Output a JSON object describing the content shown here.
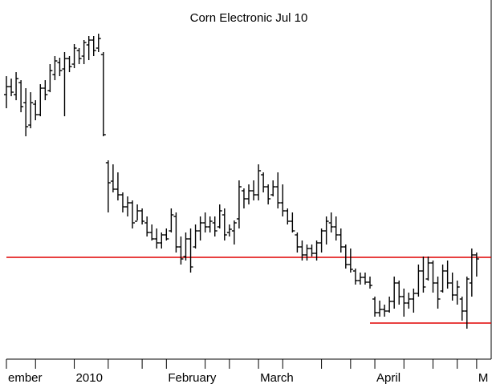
{
  "chart_data": {
    "type": "ohlc",
    "title": "Corn Electronic Jul 10",
    "color": "#000000",
    "xlim": [
      0,
      100
    ],
    "ylim": [
      0,
      448
    ],
    "xticks": [
      {
        "value": 0,
        "label": "ember"
      },
      {
        "value": 6,
        "label": null
      },
      {
        "value": 14,
        "label": "2010"
      },
      {
        "value": 21,
        "label": null
      },
      {
        "value": 28,
        "label": null
      },
      {
        "value": 33,
        "label": "February"
      },
      {
        "value": 41,
        "label": null
      },
      {
        "value": 46,
        "label": null
      },
      {
        "value": 52,
        "label": "March"
      },
      {
        "value": 57,
        "label": null
      },
      {
        "value": 65,
        "label": null
      },
      {
        "value": 71,
        "label": null
      },
      {
        "value": 76,
        "label": "April"
      },
      {
        "value": 82,
        "label": null
      },
      {
        "value": 88,
        "label": null
      },
      {
        "value": 93,
        "label": null
      },
      {
        "value": 97,
        "label": "M"
      }
    ],
    "hlines": [
      {
        "value": 127,
        "color": "#e00000"
      },
      {
        "value": 45,
        "start": 75,
        "color": "#e00000"
      }
    ],
    "open": [
      330,
      340,
      330,
      345,
      320,
      292,
      318,
      305,
      338,
      335,
      355,
      370,
      362,
      375,
      368,
      385,
      378,
      392,
      398,
      388,
      380,
      245,
      222,
      212,
      205,
      190,
      195,
      172,
      185,
      170,
      158,
      150,
      145,
      155,
      160,
      178,
      140,
      128,
      150,
      140,
      160,
      170,
      165,
      170,
      165,
      180,
      158,
      160,
      175,
      210,
      200,
      210,
      205,
      230,
      215,
      205,
      215,
      195,
      185,
      172,
      155,
      140,
      130,
      138,
      132,
      145,
      160,
      170,
      165,
      155,
      140,
      118,
      110,
      98,
      102,
      96,
      75,
      58,
      62,
      60,
      72,
      95,
      78,
      70,
      75,
      82,
      110,
      100,
      120,
      95,
      85,
      110,
      95,
      80,
      75,
      60,
      95,
      130
    ],
    "high": [
      353,
      350,
      358,
      348,
      338,
      333,
      323,
      343,
      348,
      368,
      378,
      376,
      383,
      378,
      393,
      388,
      398,
      403,
      403,
      406,
      383,
      248,
      243,
      233,
      208,
      203,
      198,
      193,
      188,
      178,
      168,
      163,
      158,
      163,
      188,
      183,
      153,
      158,
      163,
      168,
      178,
      183,
      178,
      178,
      193,
      188,
      168,
      173,
      223,
      213,
      218,
      223,
      243,
      233,
      218,
      223,
      233,
      218,
      188,
      183,
      158,
      148,
      143,
      143,
      148,
      163,
      178,
      183,
      178,
      163,
      143,
      138,
      113,
      108,
      108,
      103,
      78,
      73,
      68,
      78,
      103,
      98,
      88,
      83,
      88,
      118,
      128,
      128,
      123,
      103,
      118,
      123,
      108,
      98,
      78,
      103,
      138,
      133
    ],
    "low": [
      313,
      328,
      323,
      308,
      278,
      288,
      298,
      303,
      323,
      333,
      348,
      353,
      303,
      358,
      363,
      368,
      368,
      373,
      378,
      383,
      278,
      183,
      208,
      198,
      183,
      178,
      163,
      173,
      168,
      153,
      148,
      138,
      138,
      148,
      158,
      133,
      118,
      123,
      108,
      138,
      148,
      158,
      158,
      153,
      163,
      148,
      153,
      143,
      163,
      188,
      193,
      198,
      198,
      208,
      193,
      203,
      188,
      178,
      168,
      158,
      133,
      123,
      123,
      128,
      123,
      133,
      143,
      158,
      148,
      133,
      113,
      108,
      93,
      93,
      93,
      88,
      53,
      53,
      53,
      58,
      63,
      68,
      53,
      63,
      58,
      78,
      83,
      98,
      83,
      63,
      83,
      88,
      73,
      68,
      48,
      38,
      78,
      103
    ],
    "close": [
      340,
      333,
      350,
      315,
      290,
      320,
      305,
      338,
      330,
      360,
      372,
      360,
      375,
      365,
      388,
      375,
      395,
      398,
      385,
      400,
      280,
      220,
      212,
      205,
      190,
      195,
      170,
      185,
      172,
      158,
      150,
      145,
      155,
      150,
      180,
      140,
      125,
      150,
      115,
      160,
      170,
      165,
      172,
      160,
      185,
      155,
      162,
      170,
      215,
      200,
      210,
      205,
      235,
      215,
      200,
      215,
      195,
      185,
      172,
      160,
      140,
      130,
      138,
      132,
      145,
      160,
      172,
      165,
      155,
      140,
      118,
      112,
      98,
      102,
      96,
      92,
      58,
      62,
      60,
      72,
      95,
      78,
      70,
      75,
      82,
      110,
      90,
      120,
      95,
      75,
      110,
      95,
      80,
      90,
      60,
      100,
      130,
      125
    ]
  }
}
